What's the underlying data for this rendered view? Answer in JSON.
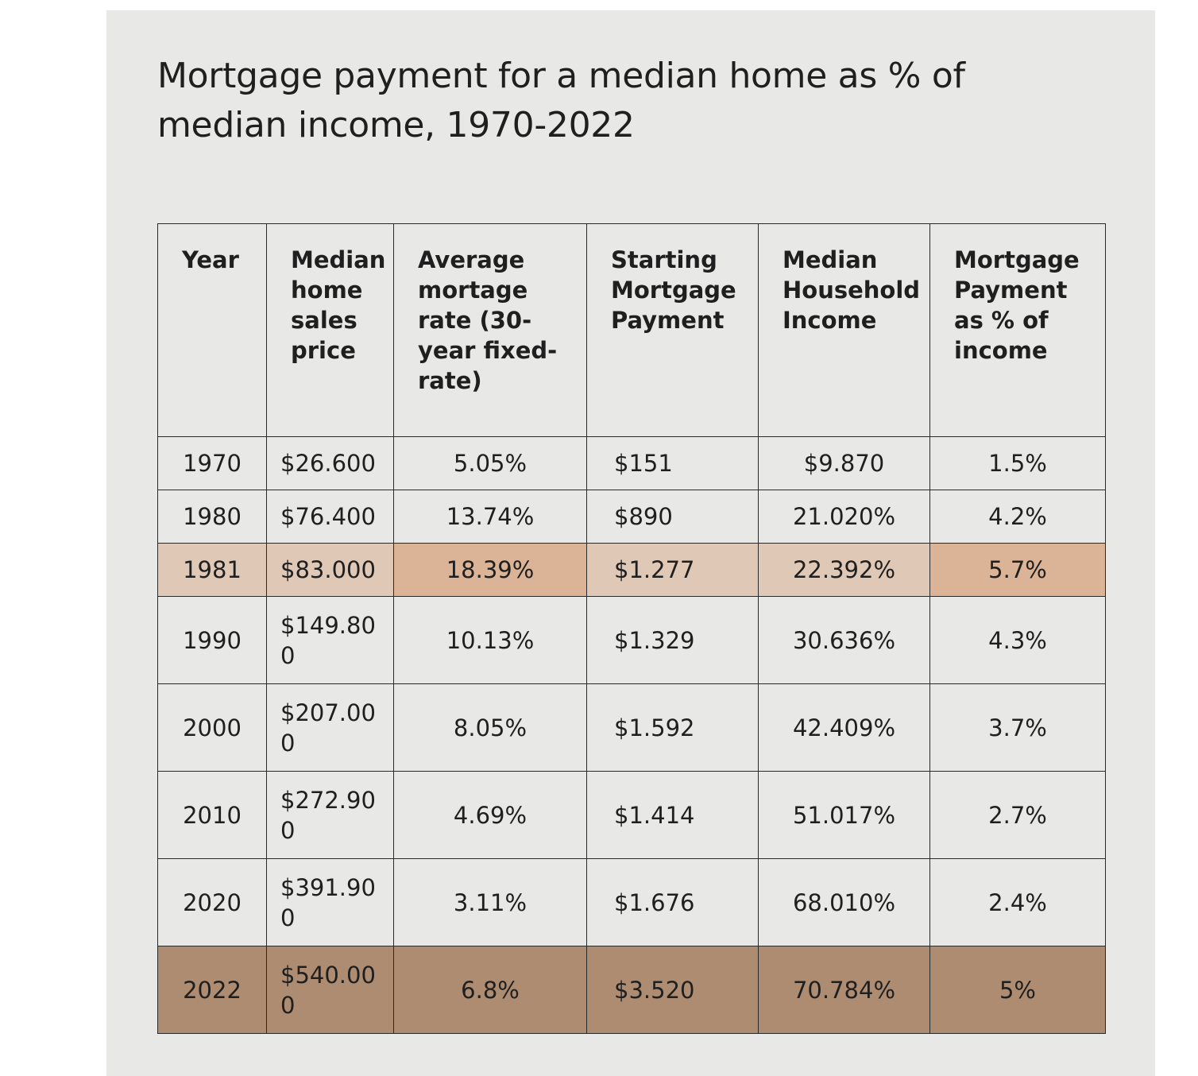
{
  "chart_data": {
    "type": "table",
    "title": "Mortgage payment for a median home as % of median income, 1970-2022",
    "columns": [
      "Year",
      "Median home sales price",
      "Average mortage rate (30-year fixed-rate)",
      "Starting Mortgage Payment",
      "Median Household Income",
      "Mortgage Payment as % of income"
    ],
    "rows": [
      [
        "1970",
        "$26.600",
        "5.05%",
        "$151",
        "$9.870",
        "1.5%"
      ],
      [
        "1980",
        "$76.400",
        "13.74%",
        "$890",
        "21.020%",
        "4.2%"
      ],
      [
        "1981",
        "$83.000",
        "18.39%",
        "$1.277",
        "22.392%",
        "5.7%"
      ],
      [
        "1990",
        "$149.800",
        "10.13%",
        "$1.329",
        "30.636%",
        "4.3%"
      ],
      [
        "2000",
        "$207.000",
        "8.05%",
        "$1.592",
        "42.409%",
        "3.7%"
      ],
      [
        "2010",
        "$272.900",
        "4.69%",
        "$1.414",
        "51.017%",
        "2.7%"
      ],
      [
        "2020",
        "$391.900",
        "3.11%",
        "$1.676",
        "68.010%",
        "2.4%"
      ],
      [
        "2022",
        "$540.000",
        "6.8%",
        "$3.520",
        "70.784%",
        "5%"
      ]
    ],
    "highlighted_rows": [
      "1981",
      "2022"
    ]
  },
  "colors": {
    "panel_background": "#e8e8e7",
    "highlight_light": "#e0c8b6",
    "highlight_medium": "#dbb396",
    "highlight_dark": "#ae8c71",
    "text": "#1f1f1f"
  }
}
